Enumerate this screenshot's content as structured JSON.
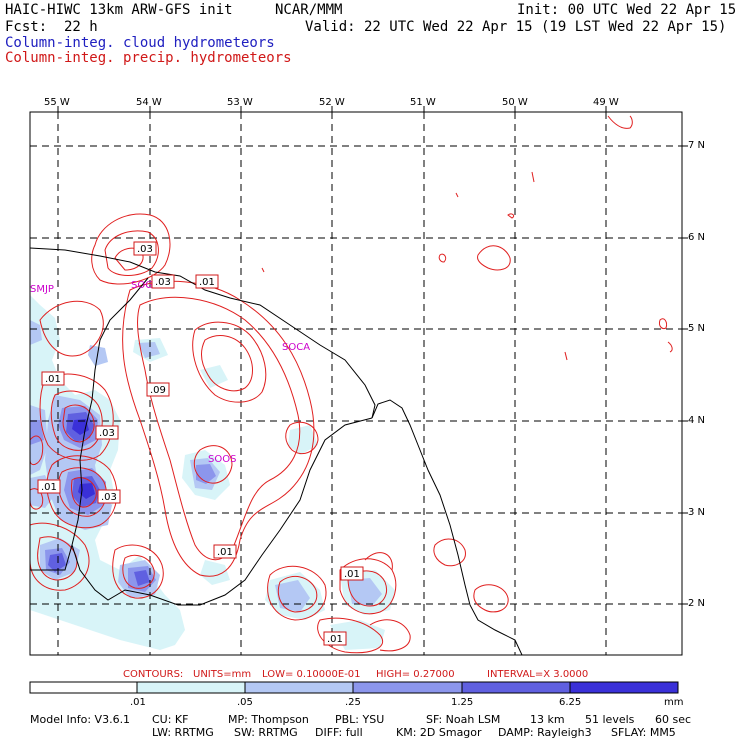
{
  "header": {
    "model": "HAIC-HIWC 13km ARW-GFS init",
    "org": "NCAR/MMM",
    "init": "Init: 00 UTC Wed 22 Apr 15",
    "fcst_label": "Fcst:",
    "fcst_value": "22 h",
    "valid": "Valid: 22 UTC Wed 22 Apr 15 (19 LST Wed 22 Apr 15)",
    "field_cloud": "Column-integ. cloud hydrometeors",
    "field_precip": "Column-integ. precip. hydrometeors"
  },
  "colors": {
    "cloud_label": "#2020c0",
    "precip_label": "#d01818",
    "contour": "#e02020",
    "station": "#cc00cc",
    "shade_1": "#d8f4f8",
    "shade_2": "#b4c8f4",
    "shade_3": "#8c96ec",
    "shade_4": "#6060e0",
    "shade_5": "#3a30d8"
  },
  "axes": {
    "lon_labels": [
      "55 W",
      "54 W",
      "53 W",
      "52 W",
      "51 W",
      "50 W",
      "49 W"
    ],
    "lat_labels": [
      "7 N",
      "6 N",
      "5 N",
      "4 N",
      "3 N",
      "2 N"
    ]
  },
  "stations": [
    "SMJP",
    "SOGM",
    "SOCA",
    "SOOS"
  ],
  "contour_labels": [
    ".03",
    ".03",
    ".01",
    ".01",
    ".09",
    ".03",
    ".01",
    ".03",
    ".01",
    ".01",
    ".01"
  ],
  "contour_info": {
    "contours": "CONTOURS:",
    "units": "UNITS=mm",
    "low": "LOW= 0.10000E-01",
    "high": "HIGH= 0.27000",
    "interval": "INTERVAL=X  3.0000"
  },
  "colorbar": {
    "ticks": [
      ".01",
      ".05",
      ".25",
      "1.25",
      "6.25"
    ],
    "unit": "mm"
  },
  "footer": {
    "line1": [
      "Model Info: V3.6.1",
      "CU: KF",
      "MP: Thompson",
      "PBL: YSU",
      "SF: Noah LSM",
      "13 km",
      "51 levels",
      "60 sec"
    ],
    "line2": [
      "LW: RRTMG",
      "SW: RRTMG",
      "DIFF: full",
      "KM: 2D Smagor",
      "DAMP: Rayleigh3",
      "SFLAY: MM5"
    ]
  }
}
